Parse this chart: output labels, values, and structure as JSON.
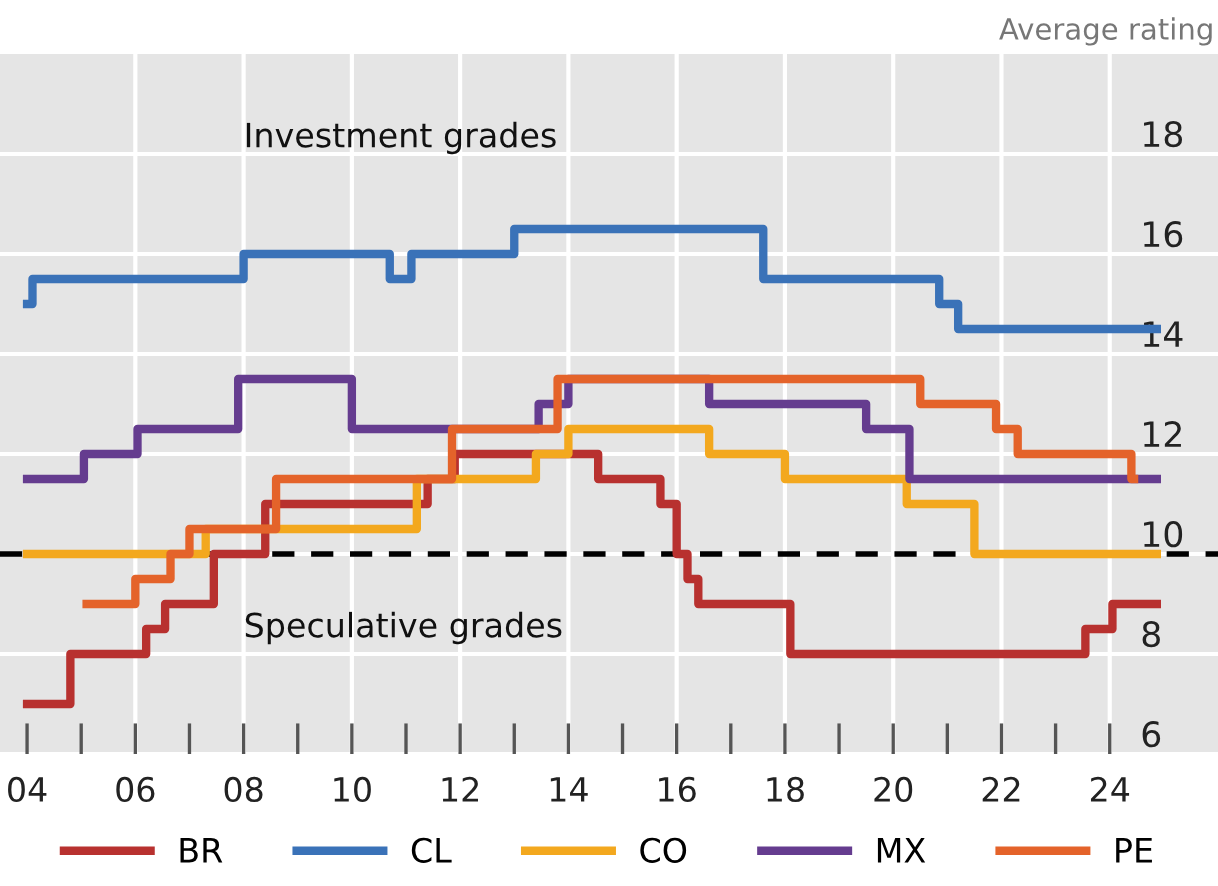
{
  "chart_data": {
    "type": "step",
    "ylabel": "Average rating",
    "ylim": [
      6,
      20
    ],
    "yticks": [
      6,
      8,
      10,
      12,
      14,
      16,
      18
    ],
    "xlim": [
      2003.5,
      2026.0
    ],
    "xticks": [
      {
        "value": 2004,
        "label": "04"
      },
      {
        "value": 2005,
        "label": null
      },
      {
        "value": 2006,
        "label": "06"
      },
      {
        "value": 2007,
        "label": null
      },
      {
        "value": 2008,
        "label": "08"
      },
      {
        "value": 2009,
        "label": null
      },
      {
        "value": 2010,
        "label": "10"
      },
      {
        "value": 2011,
        "label": null
      },
      {
        "value": 2012,
        "label": "12"
      },
      {
        "value": 2013,
        "label": null
      },
      {
        "value": 2014,
        "label": "14"
      },
      {
        "value": 2015,
        "label": null
      },
      {
        "value": 2016,
        "label": "16"
      },
      {
        "value": 2017,
        "label": null
      },
      {
        "value": 2018,
        "label": "18"
      },
      {
        "value": 2019,
        "label": null
      },
      {
        "value": 2020,
        "label": "20"
      },
      {
        "value": 2021,
        "label": null
      },
      {
        "value": 2022,
        "label": "22"
      },
      {
        "value": 2023,
        "label": null
      },
      {
        "value": 2024,
        "label": "24"
      }
    ],
    "grid": true,
    "legend": "bottom",
    "ref_lines": [
      {
        "axis": "y",
        "value": 10,
        "color": "#000000",
        "line_style": "dashed"
      }
    ],
    "annotations": [
      "Investment grades",
      "Speculative grades"
    ],
    "series": [
      {
        "name": "BR",
        "color": "#b8312f",
        "x": [
          2004.0,
          2004.8,
          2006.2,
          2006.55,
          2007.45,
          2008.4,
          2011.4,
          2011.9,
          2014.55,
          2015.7,
          2016.0,
          2016.2,
          2016.4,
          2018.1,
          2023.55,
          2024.05,
          2024.87
        ],
        "values": [
          7.0,
          8.0,
          8.5,
          9.0,
          10.0,
          11.0,
          11.5,
          12.0,
          11.5,
          11.0,
          10.0,
          9.5,
          9.0,
          8.0,
          8.5,
          9.0,
          9.0
        ]
      },
      {
        "name": "CL",
        "color": "#3a72b8",
        "x": [
          2004.0,
          2004.1,
          2008.0,
          2010.7,
          2011.1,
          2013.0,
          2017.6,
          2020.85,
          2021.2,
          2024.87
        ],
        "values": [
          15.0,
          15.5,
          16.0,
          15.5,
          16.0,
          16.5,
          15.5,
          15.0,
          14.5,
          14.5
        ]
      },
      {
        "name": "CO",
        "color": "#f3a81e",
        "x": [
          2004.0,
          2007.3,
          2011.2,
          2013.4,
          2014.0,
          2016.6,
          2018.0,
          2020.25,
          2021.5,
          2024.87
        ],
        "values": [
          10.0,
          10.5,
          11.5,
          12.0,
          12.5,
          12.0,
          11.5,
          11.0,
          10.0,
          10.0
        ]
      },
      {
        "name": "MX",
        "color": "#653c8f",
        "x": [
          2004.0,
          2005.05,
          2006.04,
          2007.9,
          2010.0,
          2013.45,
          2014.0,
          2016.6,
          2019.5,
          2020.3,
          2024.87
        ],
        "values": [
          11.5,
          12.0,
          12.5,
          13.5,
          12.5,
          13.0,
          13.5,
          13.0,
          12.5,
          11.5,
          11.5
        ]
      },
      {
        "name": "PE",
        "color": "#e4632a",
        "x": [
          2005.1,
          2006.0,
          2006.65,
          2007.0,
          2008.6,
          2011.85,
          2013.8,
          2020.5,
          2021.9,
          2022.3,
          2024.4,
          2024.45
        ],
        "values": [
          9.0,
          9.5,
          10.0,
          10.5,
          11.5,
          12.5,
          13.5,
          13.0,
          12.5,
          12.0,
          11.5,
          11.5
        ]
      }
    ]
  }
}
